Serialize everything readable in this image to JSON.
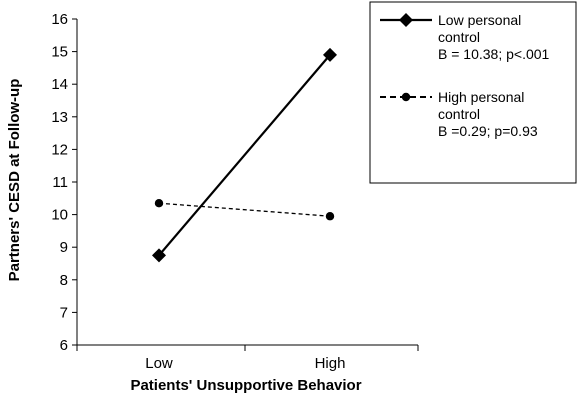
{
  "chart_data": {
    "type": "line",
    "categories": [
      "Low",
      "High"
    ],
    "xlabel": "Patients' Unsupportive Behavior",
    "ylabel": "Partners' CESD at Follow-up",
    "ylim": [
      6,
      16
    ],
    "yticks": [
      6,
      7,
      8,
      9,
      10,
      11,
      12,
      13,
      14,
      15,
      16
    ],
    "grid": false,
    "legend_position": "top-right",
    "series": [
      {
        "values": [
          8.75,
          14.9
        ],
        "line_style": "solid",
        "marker": "diamond",
        "legend_lines": [
          "Low personal",
          "control",
          "B = 10.38; p<.001"
        ]
      },
      {
        "values": [
          10.35,
          9.95
        ],
        "line_style": "dashed",
        "marker": "circle",
        "legend_lines": [
          "High personal",
          "control",
          "B =0.29; p=0.93"
        ]
      }
    ]
  }
}
